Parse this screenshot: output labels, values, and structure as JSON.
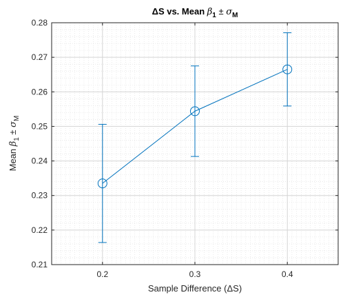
{
  "chart_data": {
    "type": "line",
    "title": "ΔS vs. Mean β₁ ± σM",
    "title_parts": {
      "prefix": "ΔS vs. Mean ",
      "beta": "β",
      "beta_sub": "1",
      "pm": " ± ",
      "sigma": "σ",
      "sigma_sub": "M"
    },
    "xlabel": "Sample Difference (ΔS)",
    "ylabel": "Mean β₁ ± σM",
    "ylabel_parts": {
      "prefix": "Mean ",
      "beta": "β",
      "beta_sub": "1",
      "pm": " ± ",
      "sigma": "σ",
      "sigma_sub": "M"
    },
    "x_ticks": [
      "0.2",
      "0.3",
      "0.4"
    ],
    "y_ticks": [
      "0.21",
      "0.22",
      "0.23",
      "0.24",
      "0.25",
      "0.26",
      "0.27",
      "0.28"
    ],
    "xlim": [
      0.145,
      0.455
    ],
    "ylim": [
      0.21,
      0.28
    ],
    "grid": "on (major and minor)",
    "marker": "circle",
    "series": [
      {
        "color": "#0072BD",
        "x": [
          0.2,
          0.3,
          0.4
        ],
        "y": [
          0.2335,
          0.2544,
          0.2665
        ],
        "error": [
          0.0171,
          0.0131,
          0.0106
        ]
      }
    ]
  }
}
